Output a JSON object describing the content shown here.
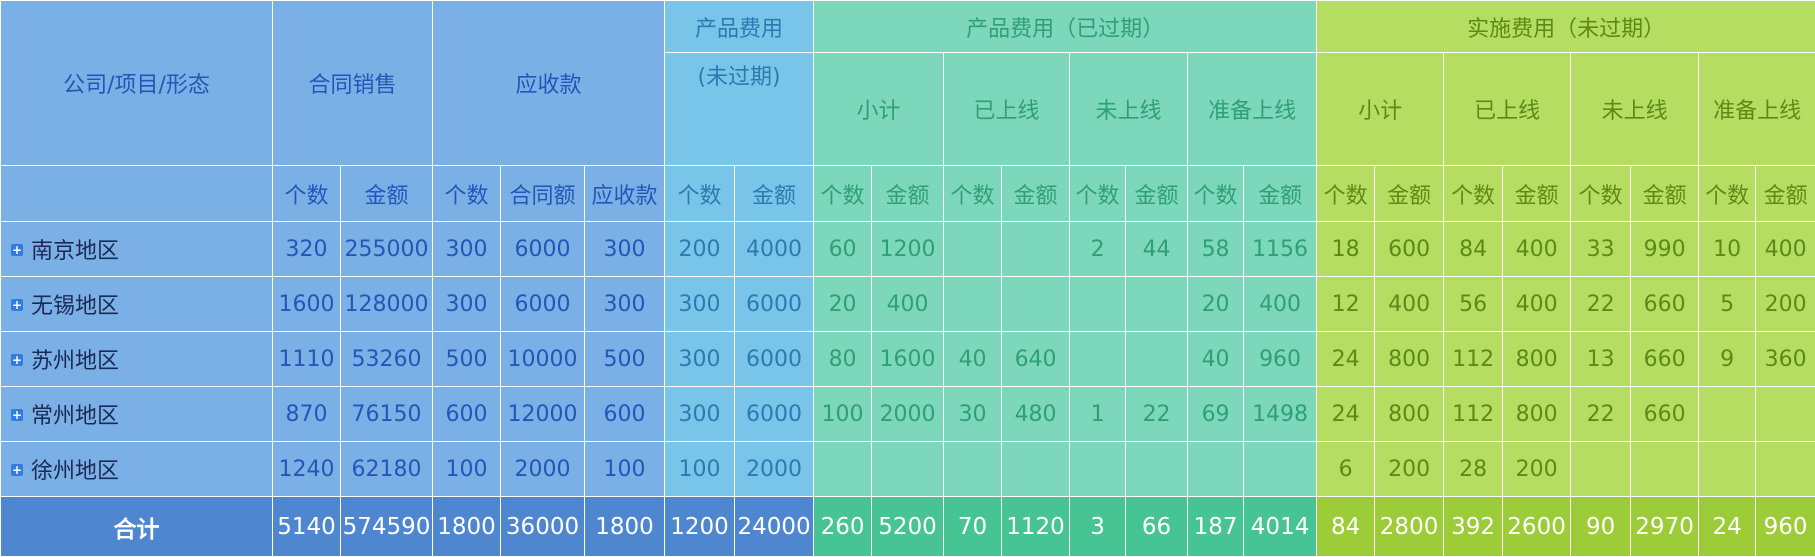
{
  "header": {
    "corner": "公司/项目/形态",
    "contract_sales": "合同销售",
    "receivable": "应收款",
    "product_unexpired_line1": "产品费用",
    "product_unexpired_line2": "(未过期)",
    "product_expired": "产品费用（已过期）",
    "impl_unexpired": "实施费用（未过期）",
    "sub": [
      "小计",
      "已上线",
      "未上线",
      "准备上线"
    ],
    "cols": [
      "个数",
      "金额",
      "个数",
      "合同额",
      "应收款",
      "个数",
      "金额",
      "个数",
      "金额",
      "个数",
      "金额",
      "个数",
      "金额",
      "个数",
      "金额",
      "个数",
      "金额",
      "个数",
      "金额",
      "个数",
      "金额",
      "个数",
      "金额"
    ]
  },
  "rows": [
    {
      "name": "南京地区",
      "values": [
        "320",
        "255000",
        "300",
        "6000",
        "300",
        "200",
        "4000",
        "60",
        "1200",
        "",
        "",
        "2",
        "44",
        "58",
        "1156",
        "18",
        "600",
        "84",
        "400",
        "33",
        "990",
        "10",
        "400"
      ]
    },
    {
      "name": "无锡地区",
      "values": [
        "1600",
        "128000",
        "300",
        "6000",
        "300",
        "300",
        "6000",
        "20",
        "400",
        "",
        "",
        "",
        "",
        "20",
        "400",
        "12",
        "400",
        "56",
        "400",
        "22",
        "660",
        "5",
        "200"
      ]
    },
    {
      "name": "苏州地区",
      "values": [
        "1110",
        "53260",
        "500",
        "10000",
        "500",
        "300",
        "6000",
        "80",
        "1600",
        "40",
        "640",
        "",
        "",
        "40",
        "960",
        "24",
        "800",
        "112",
        "800",
        "13",
        "660",
        "9",
        "360"
      ]
    },
    {
      "name": "常州地区",
      "values": [
        "870",
        "76150",
        "600",
        "12000",
        "600",
        "300",
        "6000",
        "100",
        "2000",
        "30",
        "480",
        "1",
        "22",
        "69",
        "1498",
        "24",
        "800",
        "112",
        "800",
        "22",
        "660",
        "",
        ""
      ]
    },
    {
      "name": "徐州地区",
      "values": [
        "1240",
        "62180",
        "100",
        "2000",
        "100",
        "100",
        "2000",
        "",
        "",
        "",
        "",
        "",
        "",
        "",
        "",
        "6",
        "200",
        "28",
        "200",
        "",
        "",
        "",
        ""
      ]
    }
  ],
  "total": {
    "label": "合计",
    "values": [
      "5140",
      "574590",
      "1800",
      "36000",
      "1800",
      "1200",
      "24000",
      "260",
      "5200",
      "70",
      "1120",
      "3",
      "66",
      "187",
      "4014",
      "84",
      "2800",
      "392",
      "2600",
      "90",
      "2970",
      "24",
      "960"
    ]
  },
  "colors": {
    "blue": "#7bb0e6",
    "sky": "#79c5ea",
    "teal": "#7dd8bb",
    "lime": "#b4dd62",
    "total_blue": "#4e86d0",
    "total_teal": "#47c493",
    "total_lime": "#9ccc38"
  },
  "icons": {
    "expand": "plus-square-icon"
  }
}
